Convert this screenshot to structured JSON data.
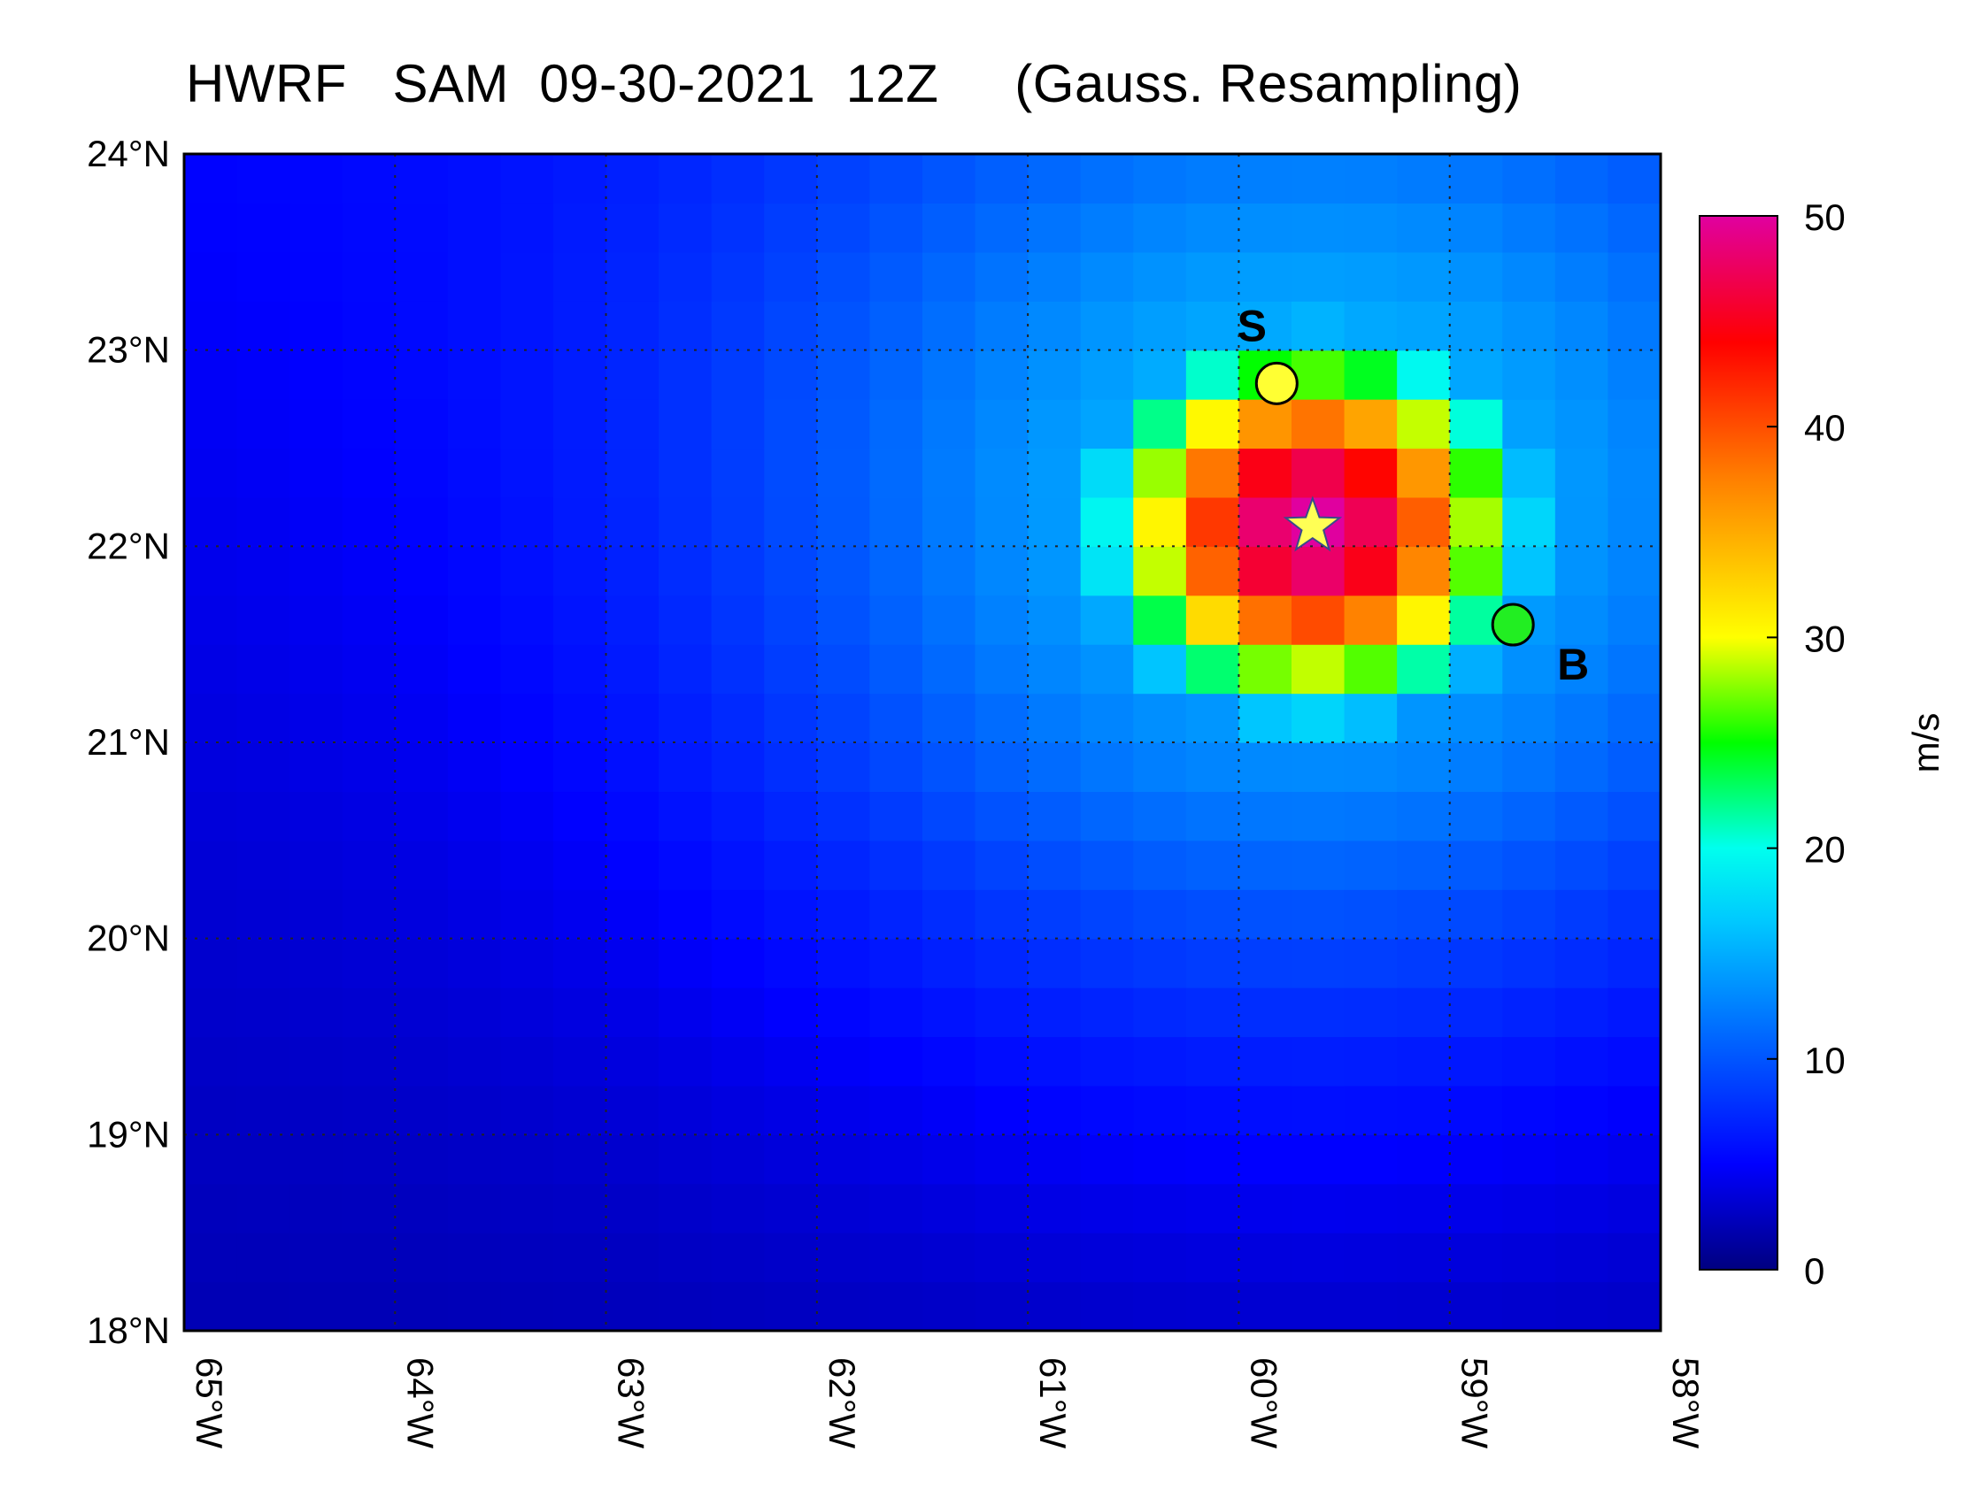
{
  "title": "HWRF   SAM  09-30-2021  12Z     (Gauss. Resampling)",
  "map": {
    "lon_range": [
      -65,
      -58
    ],
    "lat_range": [
      18,
      24
    ],
    "lat_ticks": [
      "18°N",
      "19°N",
      "20°N",
      "21°N",
      "22°N",
      "23°N",
      "24°N"
    ],
    "lon_ticks": [
      "65°W",
      "64°W",
      "63°W",
      "62°W",
      "61°W",
      "60°W",
      "59°W",
      "58°W"
    ],
    "grid": true
  },
  "colorbar": {
    "label": "m/s",
    "min": 0,
    "max": 50,
    "ticks": [
      "0",
      "10",
      "20",
      "30",
      "40",
      "50"
    ]
  },
  "markers": [
    {
      "id": "S",
      "label": "S",
      "lon": -59.82,
      "lat": 22.83,
      "fill": "#ffff33",
      "shape": "circle"
    },
    {
      "id": "B",
      "label": "B",
      "lon": -58.7,
      "lat": 21.6,
      "fill": "#22ee22",
      "shape": "circle"
    },
    {
      "id": "center",
      "label": "",
      "lon": -59.65,
      "lat": 22.1,
      "fill": "#ffff55",
      "shape": "star"
    }
  ],
  "chart_data": {
    "type": "heatmap",
    "title": "HWRF   SAM  09-30-2021  12Z     (Gauss. Resampling)",
    "xlabel": "",
    "ylabel": "",
    "colorbar_label": "m/s",
    "value_range": [
      0,
      50
    ],
    "field": {
      "description_units": "m/s",
      "storm_center": {
        "lon": -59.65,
        "lat": 22.1
      },
      "peak_value": 50,
      "core_radius_deg": 0.75,
      "background_min": 2,
      "background_max": 14
    }
  }
}
